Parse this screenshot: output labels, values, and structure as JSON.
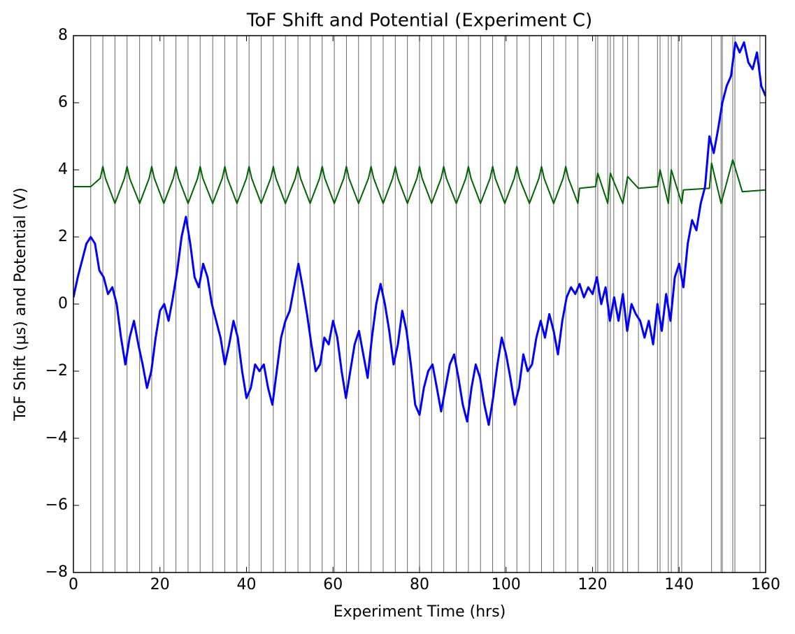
{
  "chart_data": {
    "type": "line",
    "title": "ToF Shift and Potential (Experiment C)",
    "x_label": "Experiment Time (hrs)",
    "y_label": "ToF Shift (μs) and Potential (V)",
    "xlim": [
      0,
      160
    ],
    "ylim": [
      -8,
      8
    ],
    "xticks": [
      0,
      20,
      40,
      60,
      80,
      100,
      120,
      140,
      160
    ],
    "yticks": [
      {
        "value": -8,
        "label": "−8"
      },
      {
        "value": -6,
        "label": "−6"
      },
      {
        "value": -4,
        "label": "−4"
      },
      {
        "value": -2,
        "label": "−2"
      },
      0,
      2,
      4,
      6,
      8
    ],
    "vlines_color": "#000000",
    "vlines": [
      4.0,
      6.8,
      9.6,
      12.4,
      15.3,
      18.1,
      20.9,
      23.7,
      26.5,
      29.3,
      32.2,
      35.0,
      37.8,
      40.6,
      43.4,
      46.2,
      49.0,
      51.9,
      54.7,
      57.5,
      60.3,
      63.1,
      65.9,
      68.8,
      71.6,
      74.4,
      77.2,
      80.0,
      82.8,
      85.6,
      88.5,
      91.3,
      94.1,
      96.9,
      99.7,
      102.5,
      105.4,
      108.2,
      111.0,
      113.8,
      116.6,
      120.7,
      121.2,
      123.5,
      124.1,
      124.9,
      127.0,
      128.1,
      130.6,
      135.0,
      135.6,
      137.5,
      138.2,
      139.8,
      140.6,
      147.5,
      149.7,
      150.0,
      152.4,
      152.9,
      158.7
    ],
    "series": [
      {
        "color": "#006400",
        "width": 2,
        "x": [
          0,
          4.0,
          6.2,
          6.8,
          7.4,
          9.6,
          11.8,
          12.4,
          13.0,
          15.3,
          17.5,
          18.1,
          18.7,
          20.9,
          23.1,
          23.7,
          24.3,
          26.5,
          28.7,
          29.3,
          29.9,
          32.2,
          34.4,
          35.0,
          35.6,
          37.8,
          40.0,
          40.6,
          41.2,
          43.4,
          45.6,
          46.2,
          46.8,
          49.0,
          51.3,
          51.9,
          52.5,
          54.7,
          56.9,
          57.5,
          58.1,
          60.3,
          62.5,
          63.1,
          63.7,
          65.9,
          68.2,
          68.8,
          69.4,
          71.6,
          73.8,
          74.4,
          75.0,
          77.2,
          79.4,
          80.0,
          80.6,
          82.8,
          85.0,
          85.6,
          86.2,
          88.5,
          90.7,
          91.3,
          91.9,
          94.1,
          96.3,
          96.9,
          97.5,
          99.7,
          101.9,
          102.5,
          103.1,
          105.4,
          107.6,
          108.2,
          108.8,
          111.0,
          113.2,
          113.8,
          114.4,
          116.6,
          117.0,
          120.7,
          121.2,
          123.5,
          124.1,
          127.0,
          128.1,
          130.6,
          135.0,
          135.6,
          137.5,
          138.2,
          140.6,
          141.0,
          147.0,
          147.5,
          149.7,
          152.4,
          154.6,
          160
        ],
        "values": [
          3.5,
          3.5,
          3.75,
          4.1,
          3.75,
          3.0,
          3.75,
          4.1,
          3.75,
          3.0,
          3.75,
          4.1,
          3.75,
          3.0,
          3.75,
          4.1,
          3.75,
          3.0,
          3.75,
          4.1,
          3.75,
          3.0,
          3.75,
          4.1,
          3.75,
          3.0,
          3.75,
          4.1,
          3.75,
          3.0,
          3.75,
          4.1,
          3.75,
          3.0,
          3.75,
          4.1,
          3.75,
          3.0,
          3.75,
          4.1,
          3.75,
          3.0,
          3.75,
          4.1,
          3.75,
          3.0,
          3.75,
          4.1,
          3.75,
          3.0,
          3.75,
          4.1,
          3.75,
          3.0,
          3.75,
          4.1,
          3.75,
          3.0,
          3.75,
          4.1,
          3.75,
          3.0,
          3.75,
          4.1,
          3.75,
          3.0,
          3.75,
          4.1,
          3.75,
          3.0,
          3.75,
          4.1,
          3.75,
          3.0,
          3.75,
          4.1,
          3.75,
          3.0,
          3.75,
          4.1,
          3.75,
          3.0,
          3.45,
          3.5,
          3.9,
          3.0,
          3.9,
          3.0,
          3.8,
          3.45,
          3.5,
          4.0,
          3.0,
          4.0,
          3.0,
          3.4,
          3.45,
          4.2,
          3.0,
          4.3,
          3.35,
          3.4
        ]
      },
      {
        "color": "#0000ff",
        "width": 3,
        "x": [
          0,
          1,
          2,
          3,
          4,
          5,
          6,
          7,
          8,
          9,
          10,
          11,
          12,
          13,
          14,
          15,
          16,
          17,
          18,
          19,
          20,
          21,
          22,
          23,
          24,
          25,
          26,
          27,
          28,
          29,
          30,
          31,
          32,
          33,
          34,
          35,
          36,
          37,
          38,
          39,
          40,
          41,
          42,
          43,
          44,
          45,
          46,
          47,
          48,
          49,
          50,
          51,
          52,
          53,
          54,
          55,
          56,
          57,
          58,
          59,
          60,
          61,
          62,
          63,
          64,
          65,
          66,
          67,
          68,
          69,
          70,
          71,
          72,
          73,
          74,
          75,
          76,
          77,
          78,
          79,
          80,
          81,
          82,
          83,
          84,
          85,
          86,
          87,
          88,
          89,
          90,
          91,
          92,
          93,
          94,
          95,
          96,
          97,
          98,
          99,
          100,
          101,
          102,
          103,
          104,
          105,
          106,
          107,
          108,
          109,
          110,
          111,
          112,
          113,
          114,
          115,
          116,
          117,
          118,
          119,
          120,
          121,
          122,
          123,
          124,
          125,
          126,
          127,
          128,
          129,
          130,
          131,
          132,
          133,
          134,
          135,
          136,
          137,
          138,
          139,
          140,
          141,
          142,
          143,
          144,
          145,
          146,
          147,
          148,
          149,
          150,
          151,
          152,
          153,
          154,
          155,
          156,
          157,
          158,
          159,
          160
        ],
        "values": [
          0.2,
          0.8,
          1.3,
          1.8,
          2.0,
          1.8,
          1.0,
          0.8,
          0.3,
          0.5,
          0.0,
          -1.0,
          -1.8,
          -1.0,
          -0.5,
          -1.2,
          -1.8,
          -2.5,
          -2.0,
          -1.0,
          -0.2,
          0.0,
          -0.5,
          0.2,
          1.0,
          2.0,
          2.6,
          1.8,
          0.8,
          0.5,
          1.2,
          0.8,
          0.0,
          -0.5,
          -1.0,
          -1.8,
          -1.2,
          -0.5,
          -1.0,
          -2.0,
          -2.8,
          -2.5,
          -1.8,
          -2.0,
          -1.8,
          -2.5,
          -3.0,
          -2.0,
          -1.0,
          -0.5,
          -0.2,
          0.5,
          1.2,
          0.5,
          -0.3,
          -1.2,
          -2.0,
          -1.8,
          -1.0,
          -1.2,
          -0.5,
          -1.0,
          -2.0,
          -2.8,
          -2.0,
          -1.2,
          -0.8,
          -1.5,
          -2.2,
          -1.0,
          0.0,
          0.6,
          0.0,
          -0.8,
          -1.8,
          -1.2,
          -0.2,
          -0.8,
          -1.8,
          -3.0,
          -3.3,
          -2.5,
          -2.0,
          -1.8,
          -2.5,
          -3.2,
          -2.5,
          -1.8,
          -1.5,
          -2.2,
          -3.0,
          -3.5,
          -2.5,
          -1.8,
          -2.2,
          -3.0,
          -3.6,
          -2.8,
          -1.8,
          -1.0,
          -1.5,
          -2.2,
          -3.0,
          -2.5,
          -1.5,
          -2.0,
          -1.8,
          -1.0,
          -0.5,
          -1.0,
          -0.3,
          -0.8,
          -1.5,
          -0.5,
          0.2,
          0.5,
          0.3,
          0.6,
          0.2,
          0.5,
          0.3,
          0.8,
          0.0,
          0.5,
          -0.5,
          0.2,
          -0.5,
          0.3,
          -0.8,
          0.0,
          -0.3,
          -0.5,
          -1.0,
          -0.5,
          -1.2,
          0.0,
          -0.8,
          0.3,
          -0.5,
          0.8,
          1.2,
          0.5,
          1.8,
          2.5,
          2.2,
          3.0,
          3.5,
          5.0,
          4.5,
          5.2,
          6.0,
          6.5,
          6.8,
          7.8,
          7.5,
          7.8,
          7.2,
          7.0,
          7.5,
          6.5,
          6.2
        ]
      }
    ]
  }
}
